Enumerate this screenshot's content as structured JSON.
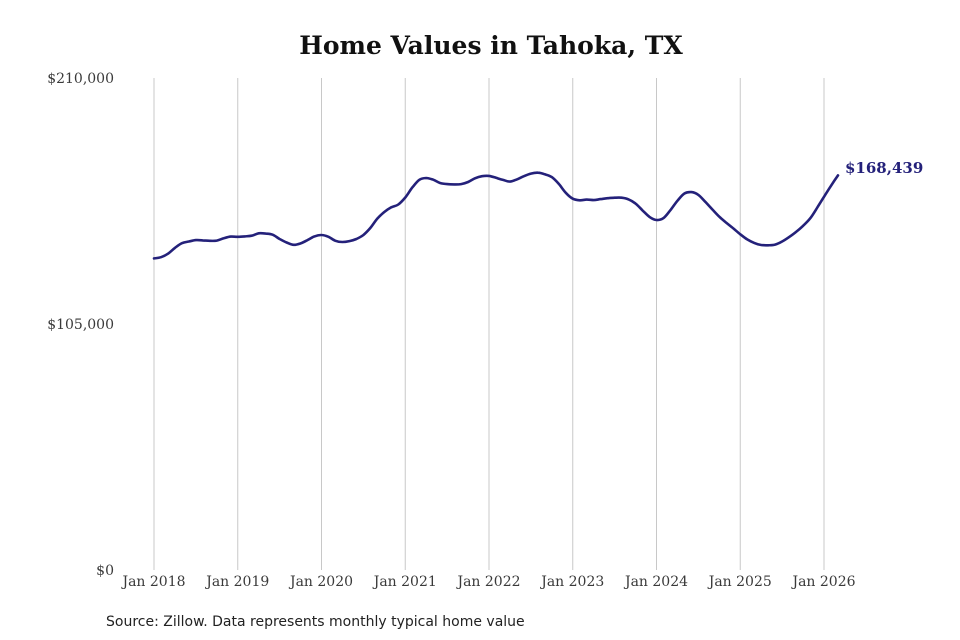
{
  "chart_data": {
    "type": "line",
    "title": "Home Values in Tahoka, TX",
    "xlabel": "",
    "ylabel": "",
    "ylim": [
      0,
      210000
    ],
    "y_ticks": [
      {
        "value": 0,
        "label": "$0"
      },
      {
        "value": 105000,
        "label": "$105,000"
      },
      {
        "value": 210000,
        "label": "$210,000"
      }
    ],
    "x_ticks": [
      {
        "value": 2018,
        "label": "Jan 2018"
      },
      {
        "value": 2019,
        "label": "Jan 2019"
      },
      {
        "value": 2020,
        "label": "Jan 2020"
      },
      {
        "value": 2021,
        "label": "Jan 2021"
      },
      {
        "value": 2022,
        "label": "Jan 2022"
      },
      {
        "value": 2023,
        "label": "Jan 2023"
      },
      {
        "value": 2024,
        "label": "Jan 2024"
      },
      {
        "value": 2025,
        "label": "Jan 2025"
      },
      {
        "value": 2026,
        "label": "Jan 2026"
      }
    ],
    "grid": "vertical",
    "legend": "none",
    "end_label": "$168,439",
    "line_color": "#24217a",
    "series": [
      {
        "values": [
          [
            "2018-01",
            133000
          ],
          [
            "2018-02",
            133500
          ],
          [
            "2018-03",
            135000
          ],
          [
            "2018-04",
            137500
          ],
          [
            "2018-05",
            139500
          ],
          [
            "2018-06",
            140200
          ],
          [
            "2018-07",
            140800
          ],
          [
            "2018-08",
            140700
          ],
          [
            "2018-09",
            140500
          ],
          [
            "2018-10",
            140600
          ],
          [
            "2018-11",
            141600
          ],
          [
            "2018-12",
            142300
          ],
          [
            "2019-01",
            142200
          ],
          [
            "2019-02",
            142400
          ],
          [
            "2019-03",
            142700
          ],
          [
            "2019-04",
            143700
          ],
          [
            "2019-05",
            143600
          ],
          [
            "2019-06",
            143100
          ],
          [
            "2019-07",
            141300
          ],
          [
            "2019-08",
            139800
          ],
          [
            "2019-09",
            138800
          ],
          [
            "2019-10",
            139400
          ],
          [
            "2019-11",
            140800
          ],
          [
            "2019-12",
            142400
          ],
          [
            "2020-01",
            143000
          ],
          [
            "2020-02",
            142200
          ],
          [
            "2020-03",
            140500
          ],
          [
            "2020-04",
            140000
          ],
          [
            "2020-05",
            140400
          ],
          [
            "2020-06",
            141300
          ],
          [
            "2020-07",
            143000
          ],
          [
            "2020-08",
            146000
          ],
          [
            "2020-09",
            150000
          ],
          [
            "2020-10",
            152800
          ],
          [
            "2020-11",
            154800
          ],
          [
            "2020-12",
            156000
          ],
          [
            "2021-01",
            159000
          ],
          [
            "2021-02",
            163200
          ],
          [
            "2021-03",
            166500
          ],
          [
            "2021-04",
            167300
          ],
          [
            "2021-05",
            166600
          ],
          [
            "2021-06",
            165200
          ],
          [
            "2021-07",
            164700
          ],
          [
            "2021-08",
            164600
          ],
          [
            "2021-09",
            164700
          ],
          [
            "2021-10",
            165600
          ],
          [
            "2021-11",
            167200
          ],
          [
            "2021-12",
            168100
          ],
          [
            "2022-01",
            168200
          ],
          [
            "2022-02",
            167400
          ],
          [
            "2022-03",
            166500
          ],
          [
            "2022-04",
            165800
          ],
          [
            "2022-05",
            166700
          ],
          [
            "2022-06",
            168100
          ],
          [
            "2022-07",
            169200
          ],
          [
            "2022-08",
            169600
          ],
          [
            "2022-09",
            168900
          ],
          [
            "2022-10",
            167700
          ],
          [
            "2022-11",
            164800
          ],
          [
            "2022-12",
            161000
          ],
          [
            "2023-01",
            158500
          ],
          [
            "2023-02",
            157800
          ],
          [
            "2023-03",
            158100
          ],
          [
            "2023-04",
            157900
          ],
          [
            "2023-05",
            158300
          ],
          [
            "2023-06",
            158700
          ],
          [
            "2023-07",
            158900
          ],
          [
            "2023-08",
            158900
          ],
          [
            "2023-09",
            158200
          ],
          [
            "2023-10",
            156400
          ],
          [
            "2023-11",
            153500
          ],
          [
            "2023-12",
            150700
          ],
          [
            "2024-01",
            149400
          ],
          [
            "2024-02",
            150200
          ],
          [
            "2024-03",
            153600
          ],
          [
            "2024-04",
            157600
          ],
          [
            "2024-05",
            160700
          ],
          [
            "2024-06",
            161300
          ],
          [
            "2024-07",
            160100
          ],
          [
            "2024-08",
            157100
          ],
          [
            "2024-09",
            153900
          ],
          [
            "2024-10",
            150800
          ],
          [
            "2024-11",
            148200
          ],
          [
            "2024-12",
            145800
          ],
          [
            "2025-01",
            143300
          ],
          [
            "2025-02",
            141100
          ],
          [
            "2025-03",
            139600
          ],
          [
            "2025-04",
            138700
          ],
          [
            "2025-05",
            138600
          ],
          [
            "2025-06",
            138900
          ],
          [
            "2025-07",
            140200
          ],
          [
            "2025-08",
            142100
          ],
          [
            "2025-09",
            144300
          ],
          [
            "2025-10",
            146900
          ],
          [
            "2025-11",
            150000
          ],
          [
            "2025-12",
            154500
          ],
          [
            "2026-01",
            159300
          ],
          [
            "2026-02",
            164000
          ],
          [
            "2026-03",
            168439
          ]
        ]
      }
    ]
  },
  "footer": {
    "source": "Source: Zillow. Data represents monthly typical home value"
  }
}
